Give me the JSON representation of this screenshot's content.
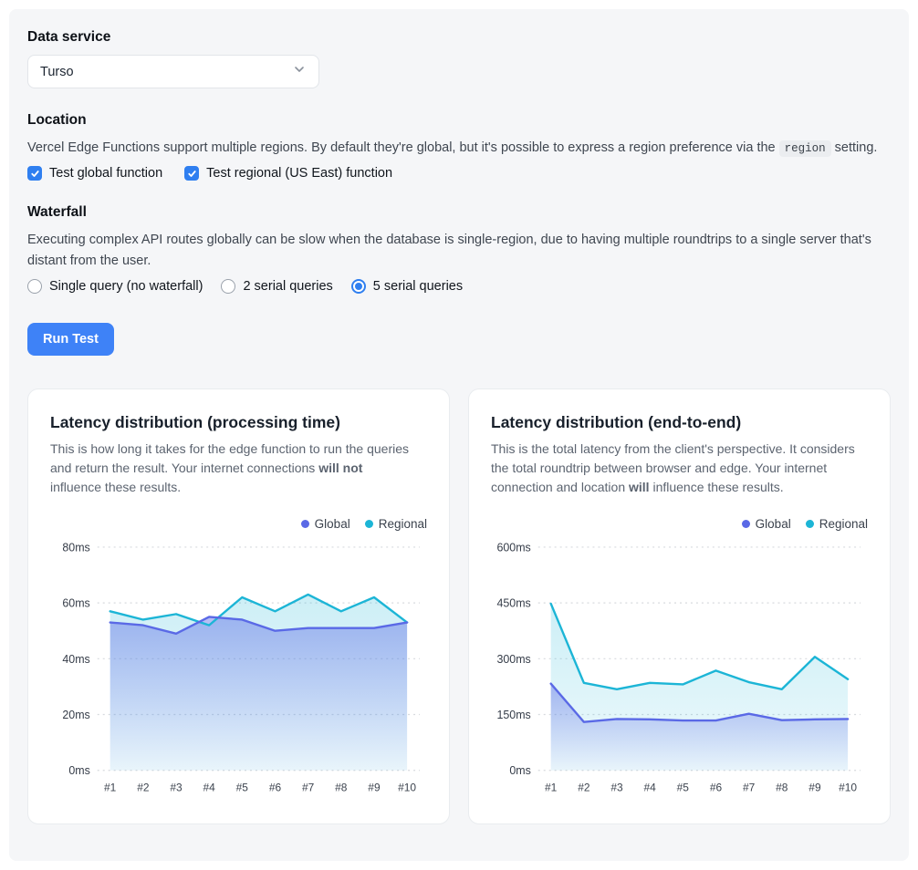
{
  "form": {
    "data_service": {
      "label": "Data service",
      "selected": "Turso"
    },
    "location": {
      "label": "Location",
      "description_before": "Vercel Edge Functions support multiple regions. By default they're global, but it's possible to express a region preference via the ",
      "description_code": "region",
      "description_after": " setting.",
      "checkboxes": [
        {
          "label": "Test global function",
          "checked": true
        },
        {
          "label": "Test regional (US East) function",
          "checked": true
        }
      ]
    },
    "waterfall": {
      "label": "Waterfall",
      "description": "Executing complex API routes globally can be slow when the database is single-region, due to having multiple roundtrips to a single server that's distant from the user.",
      "radios": [
        {
          "label": "Single query (no waterfall)",
          "selected": false
        },
        {
          "label": "2 serial queries",
          "selected": false
        },
        {
          "label": "5 serial queries",
          "selected": true
        }
      ]
    },
    "run_button": "Run Test"
  },
  "cards": [
    {
      "description_before": "This is how long it takes for the edge function to run the queries and return the result. Your internet connections ",
      "description_bold": "will not",
      "description_after": " influence these results."
    },
    {
      "description_before": "This is the total latency from the client's perspective. It considers the total roundtrip between browser and edge. Your internet connection and location ",
      "description_bold": "will",
      "description_after": " influence these results."
    }
  ],
  "chart_data": [
    {
      "type": "line",
      "title": "Latency distribution (processing time)",
      "categories": [
        "#1",
        "#2",
        "#3",
        "#4",
        "#5",
        "#6",
        "#7",
        "#8",
        "#9",
        "#10"
      ],
      "series": [
        {
          "name": "Global",
          "color": "#5a69e6",
          "fill_top": 0.45,
          "fill_bottom": 0.03,
          "values": [
            53,
            52,
            49,
            55,
            54,
            50,
            51,
            51,
            51,
            53
          ]
        },
        {
          "name": "Regional",
          "color": "#1cb5d6",
          "fill_top": 0.22,
          "fill_bottom": 0.08,
          "values": [
            57,
            54,
            56,
            52,
            62,
            57,
            63,
            57,
            62,
            53
          ]
        }
      ],
      "ylim": [
        0,
        80
      ],
      "yticks": [
        0,
        20,
        40,
        60,
        80
      ],
      "ytick_labels": [
        "0ms",
        "20ms",
        "40ms",
        "60ms",
        "80ms"
      ],
      "grid": "dashed-horizontal",
      "legend_position": "top-right"
    },
    {
      "type": "line",
      "title": "Latency distribution (end-to-end)",
      "categories": [
        "#1",
        "#2",
        "#3",
        "#4",
        "#5",
        "#6",
        "#7",
        "#8",
        "#9",
        "#10"
      ],
      "series": [
        {
          "name": "Global",
          "color": "#5a69e6",
          "fill_top": 0.45,
          "fill_bottom": 0.03,
          "values": [
            233,
            130,
            138,
            137,
            134,
            134,
            152,
            135,
            137,
            138
          ]
        },
        {
          "name": "Regional",
          "color": "#1cb5d6",
          "fill_top": 0.22,
          "fill_bottom": 0.08,
          "values": [
            448,
            235,
            218,
            235,
            231,
            268,
            237,
            218,
            305,
            245
          ]
        }
      ],
      "ylim": [
        0,
        600
      ],
      "yticks": [
        0,
        150,
        300,
        450,
        600
      ],
      "ytick_labels": [
        "0ms",
        "150ms",
        "300ms",
        "450ms",
        "600ms"
      ],
      "grid": "dashed-horizontal",
      "legend_position": "top-right"
    }
  ]
}
